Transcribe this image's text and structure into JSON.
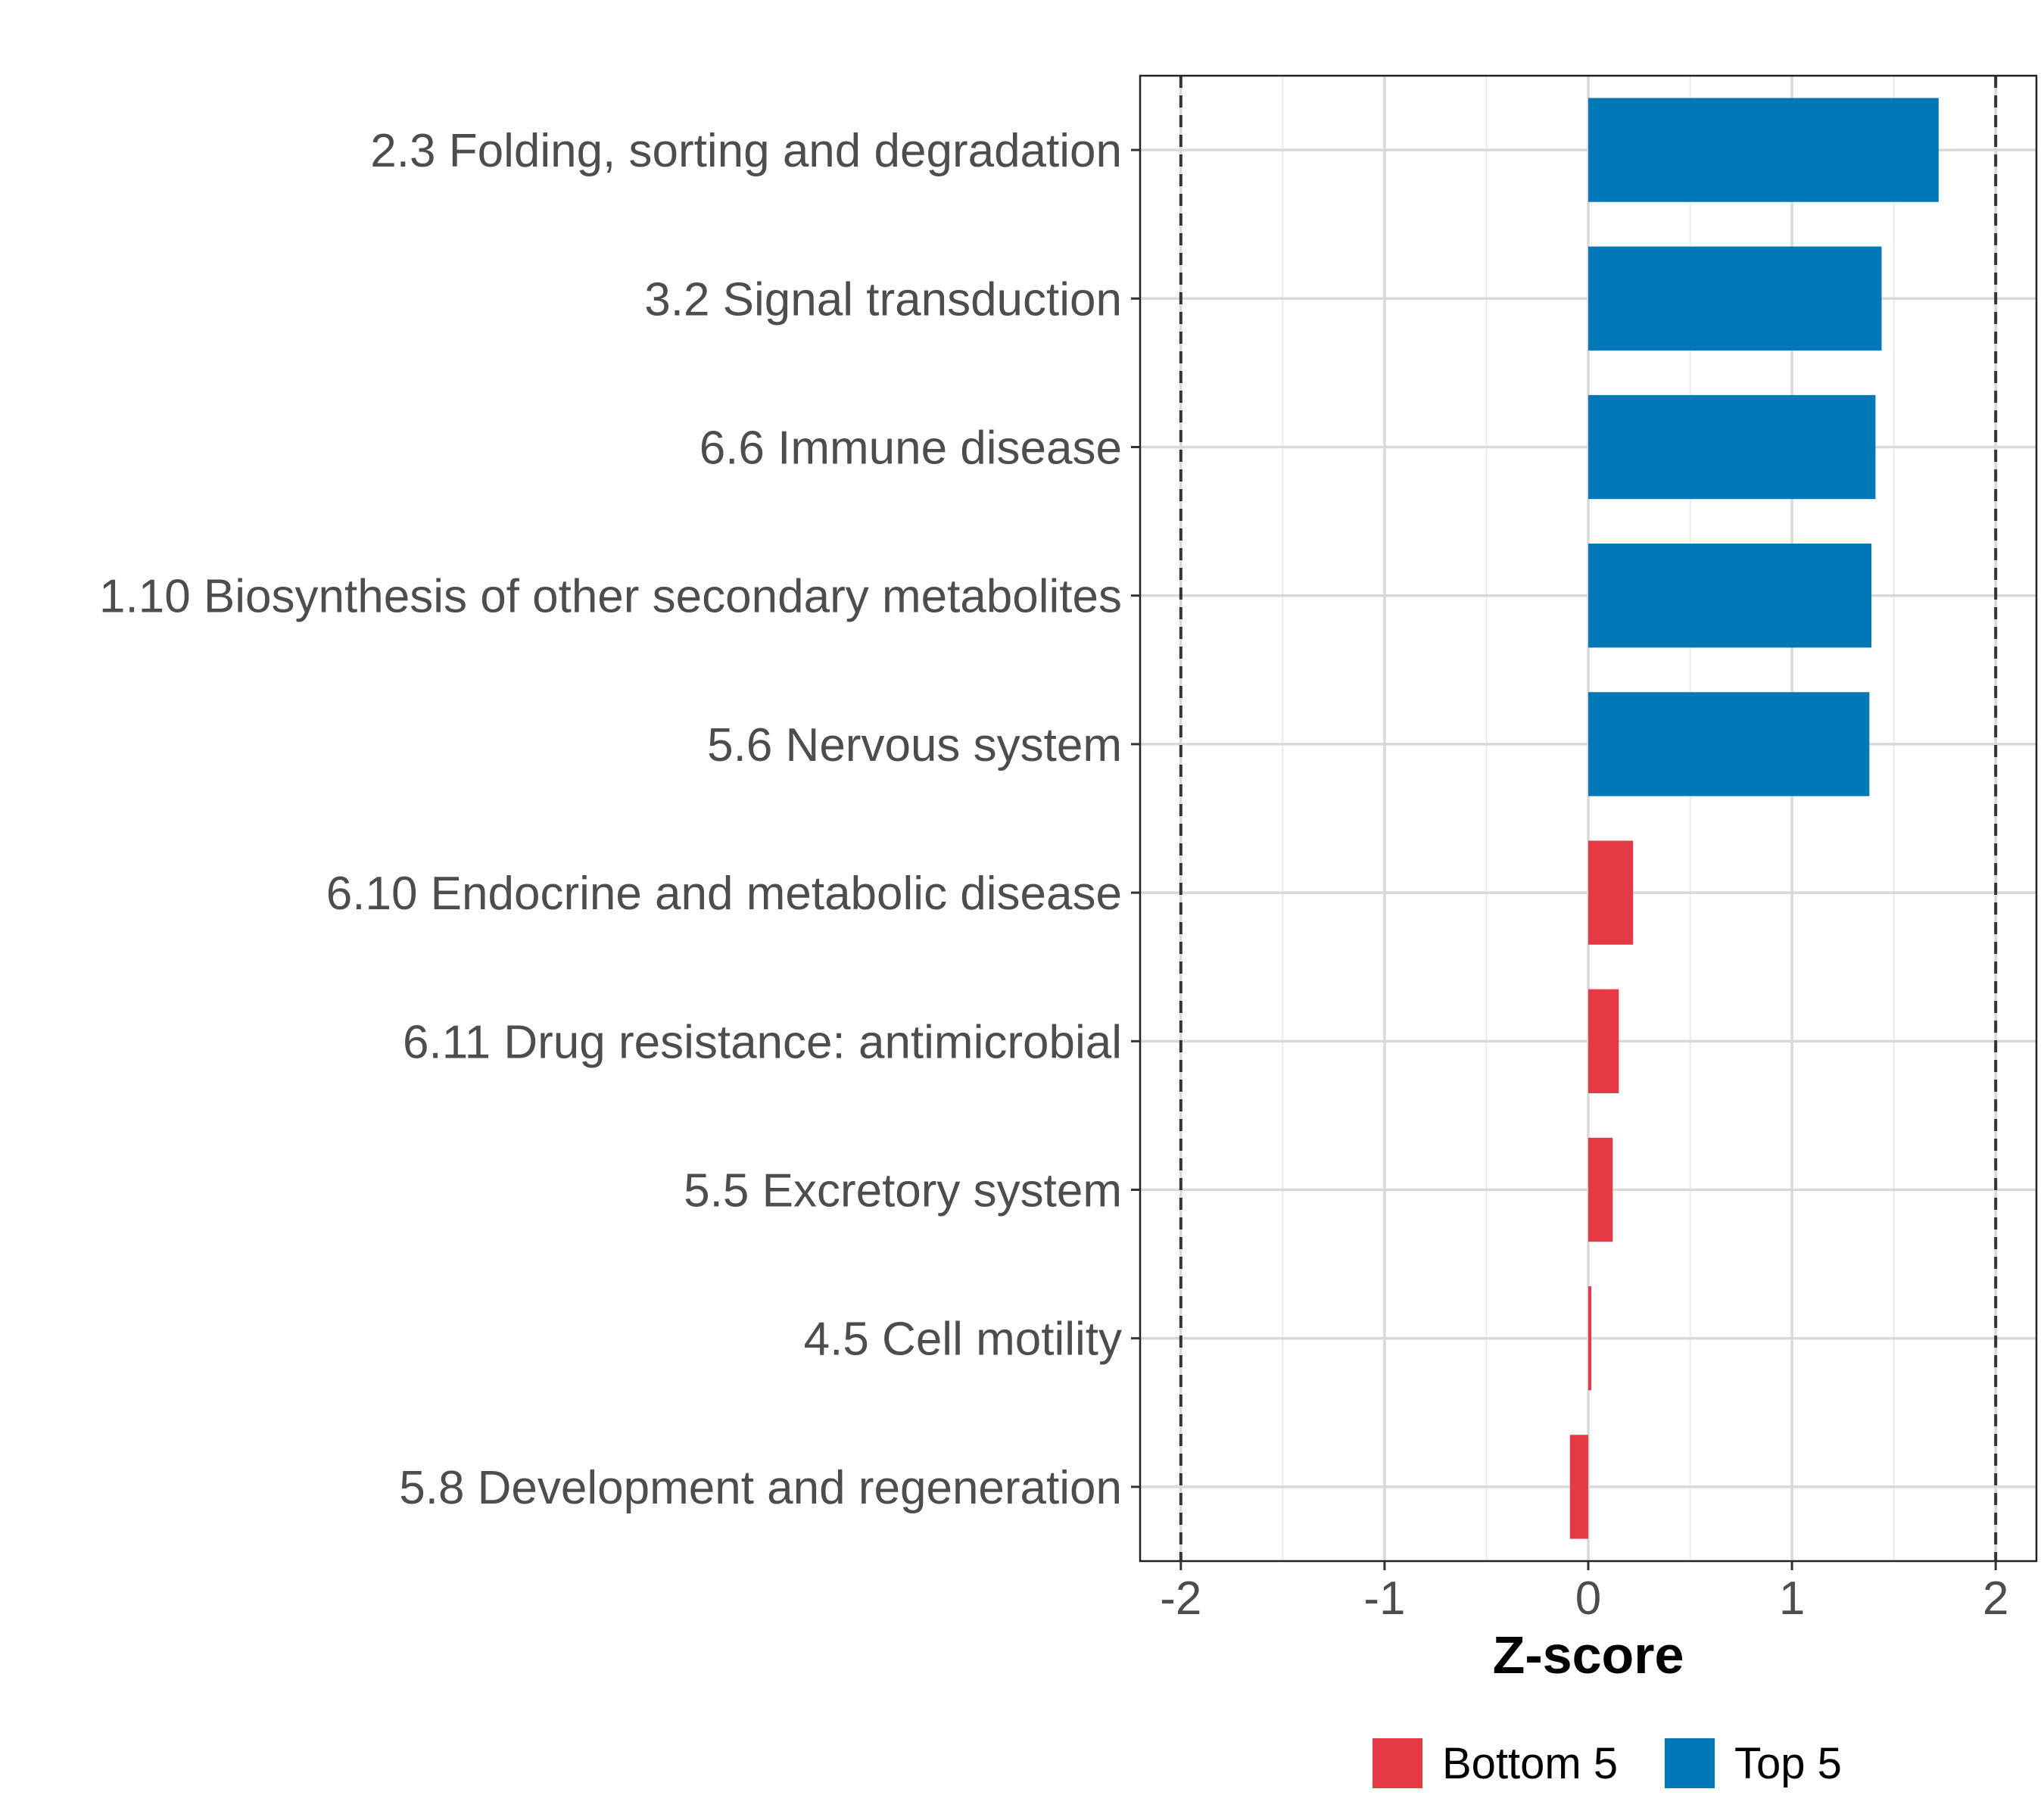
{
  "chart_data": {
    "type": "bar",
    "orientation": "horizontal",
    "title": "",
    "xlabel": "Z-score",
    "ylabel": "",
    "xlim": [
      -2.2,
      2.2
    ],
    "xticks": [
      -2,
      -1,
      0,
      1,
      2
    ],
    "xtick_labels": [
      "-2",
      "-1",
      "0",
      "1",
      "2"
    ],
    "reference_lines": [
      -2,
      2
    ],
    "grid": true,
    "categories": [
      "2.3 Folding, sorting and degradation",
      "3.2 Signal transduction",
      "6.6 Immune disease",
      "1.10 Biosynthesis of other secondary metabolites",
      "5.6 Nervous system",
      "6.10 Endocrine and metabolic disease",
      "6.11 Drug resistance: antimicrobial",
      "5.5 Excretory system",
      "4.5 Cell motility",
      "5.8 Development and regeneration"
    ],
    "values": [
      1.72,
      1.44,
      1.41,
      1.39,
      1.38,
      0.22,
      0.15,
      0.12,
      0.015,
      -0.09
    ],
    "groups": [
      "Top 5",
      "Top 5",
      "Top 5",
      "Top 5",
      "Top 5",
      "Bottom 5",
      "Bottom 5",
      "Bottom 5",
      "Bottom 5",
      "Bottom 5"
    ],
    "legend": {
      "position": "bottom",
      "entries": [
        {
          "name": "Bottom 5",
          "color": "#e63946"
        },
        {
          "name": "Top 5",
          "color": "#0077b6"
        }
      ]
    }
  }
}
